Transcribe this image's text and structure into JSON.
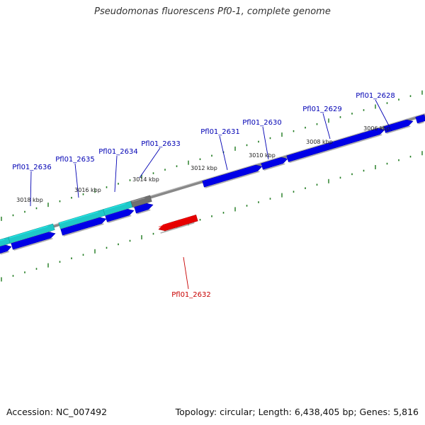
{
  "title": "Pseudomonas fluorescens Pf0-1, complete genome",
  "footer": {
    "accession": "Accession: NC_007492",
    "stats": "Topology: circular; Length: 6,438,405 bp; Genes: 5,816"
  },
  "colors": {
    "forward_gene": "#0000e6",
    "operon_gene": "#1ec8c8",
    "pseudo_gene": "#707070",
    "highlight_gene": "#e60000",
    "label_forward": "#0000b4",
    "label_highlight": "#c80000",
    "tick": "#1e7a1e",
    "backbone": "#888888"
  },
  "scale_labels": [
    {
      "kbp": 3018,
      "text": "3018 kbp"
    },
    {
      "kbp": 3016,
      "text": "3016 kbp"
    },
    {
      "kbp": 3014,
      "text": "3014 kbp"
    },
    {
      "kbp": 3012,
      "text": "3012 kbp"
    },
    {
      "kbp": 3010,
      "text": "3010 kbp"
    },
    {
      "kbp": 3008,
      "text": "3008 kbp"
    },
    {
      "kbp": 3006,
      "text": "3006 kbp"
    }
  ],
  "gene_labels": [
    {
      "id": "Pfl01_2636",
      "strand": "forward"
    },
    {
      "id": "Pfl01_2635",
      "strand": "forward"
    },
    {
      "id": "Pfl01_2634",
      "strand": "forward"
    },
    {
      "id": "Pfl01_2633",
      "strand": "forward"
    },
    {
      "id": "Pfl01_2631",
      "strand": "forward"
    },
    {
      "id": "Pfl01_2630",
      "strand": "forward"
    },
    {
      "id": "Pfl01_2629",
      "strand": "forward"
    },
    {
      "id": "Pfl01_2628",
      "strand": "forward"
    },
    {
      "id": "Pfl01_2632",
      "strand": "reverse"
    }
  ]
}
